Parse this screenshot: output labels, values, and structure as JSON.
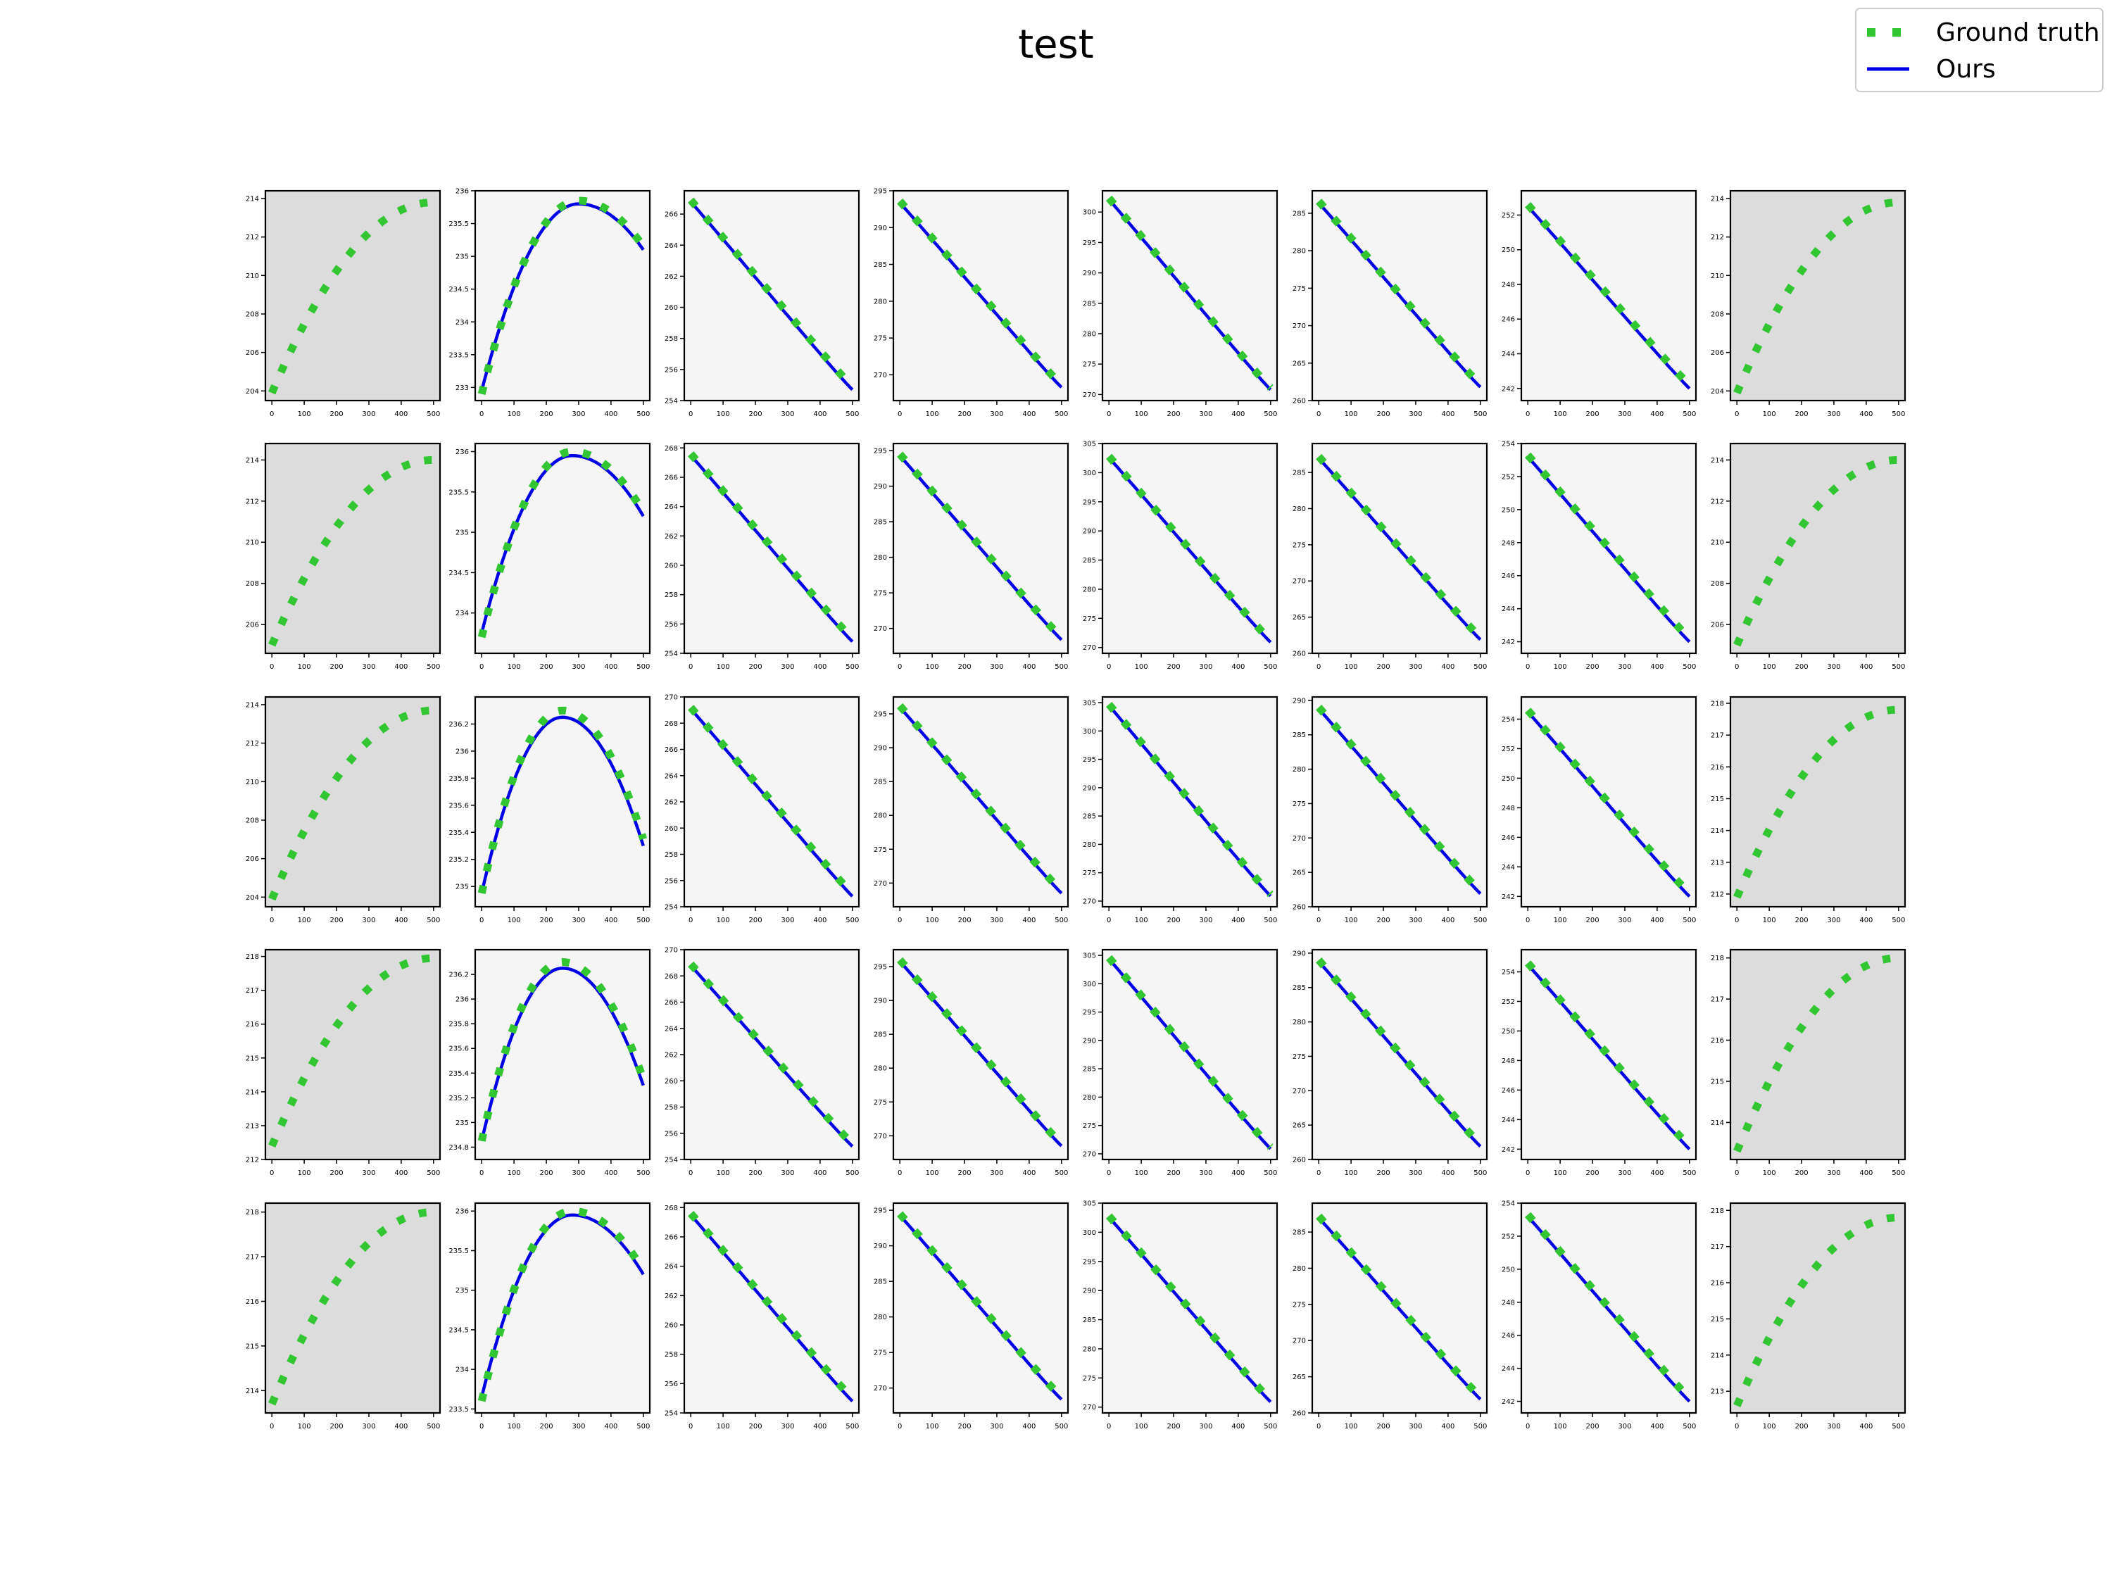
{
  "figure": {
    "title": "test",
    "legend": {
      "placement": "top-right",
      "entries": [
        {
          "label": "Ground truth",
          "color": "#33c633",
          "style": "dotted",
          "marker": "square-dash"
        },
        {
          "label": "Ours",
          "color": "#0000e6",
          "style": "solid"
        }
      ]
    },
    "colors": {
      "ground_truth": "#33c633",
      "ours": "#0000e6",
      "background_observed": "#dcdcdc",
      "background_predicted": "#f5f5f5"
    }
  },
  "chart_data": {
    "type": "line",
    "layout": {
      "rows": 5,
      "cols": 8
    },
    "x_ticks": [
      0,
      100,
      200,
      300,
      400,
      500
    ],
    "x_range": [
      -20,
      520
    ],
    "series_names": [
      "Ground truth",
      "Ours"
    ],
    "panels": [
      {
        "row": 0,
        "col": 0,
        "shaded": true,
        "shape": "rise",
        "gt": [
          203.9,
          213.8
        ],
        "ylim": [
          203.5,
          214.4
        ],
        "yticks": [
          204,
          206,
          208,
          210,
          212,
          214
        ]
      },
      {
        "row": 0,
        "col": 1,
        "shaded": false,
        "shape": "arch",
        "gt": [
          232.9,
          235.85,
          235.15
        ],
        "ours": [
          232.95,
          235.8,
          235.1
        ],
        "peak_x": 300,
        "ylim": [
          232.8,
          236.0
        ],
        "yticks": [
          233.0,
          233.5,
          234.0,
          234.5,
          235.0,
          235.5,
          236.0
        ]
      },
      {
        "row": 0,
        "col": 2,
        "shaded": false,
        "shape": "fall",
        "gt": [
          266.9,
          254.9
        ],
        "ours": [
          266.8,
          254.7
        ],
        "ylim": [
          254.0,
          267.5
        ],
        "yticks": [
          254,
          256,
          258,
          260,
          262,
          264,
          266
        ]
      },
      {
        "row": 0,
        "col": 3,
        "shaded": false,
        "shape": "fall",
        "gt": [
          293.6,
          268.6
        ],
        "ours": [
          293.4,
          268.3
        ],
        "ylim": [
          266.5,
          295.0
        ],
        "yticks": [
          270,
          275,
          280,
          285,
          290,
          295
        ]
      },
      {
        "row": 0,
        "col": 4,
        "shaded": false,
        "shape": "fall",
        "gt": [
          302.3,
          271.1
        ],
        "ours": [
          302.1,
          270.8
        ],
        "ylim": [
          269.0,
          303.5
        ],
        "yticks": [
          270,
          275,
          280,
          285,
          290,
          295,
          300
        ]
      },
      {
        "row": 0,
        "col": 5,
        "shaded": false,
        "shape": "fall",
        "gt": [
          286.6,
          262.1
        ],
        "ours": [
          286.4,
          261.8
        ],
        "ylim": [
          260.0,
          288.0
        ],
        "yticks": [
          260,
          265,
          270,
          275,
          280,
          285
        ]
      },
      {
        "row": 0,
        "col": 6,
        "shaded": false,
        "shape": "fall",
        "gt": [
          252.6,
          242.2
        ],
        "ours": [
          252.5,
          242.0
        ],
        "ylim": [
          241.3,
          253.4
        ],
        "yticks": [
          242,
          244,
          246,
          248,
          250,
          252
        ]
      },
      {
        "row": 0,
        "col": 7,
        "shaded": true,
        "shape": "rise",
        "gt": [
          203.9,
          213.8
        ],
        "ylim": [
          203.5,
          214.4
        ],
        "yticks": [
          204,
          206,
          208,
          210,
          212,
          214
        ]
      },
      {
        "row": 1,
        "col": 0,
        "shaded": true,
        "shape": "rise",
        "gt": [
          205.0,
          214.0
        ],
        "ylim": [
          204.6,
          214.8
        ],
        "yticks": [
          206,
          208,
          210,
          212,
          214
        ]
      },
      {
        "row": 1,
        "col": 1,
        "shaded": false,
        "shape": "arch",
        "gt": [
          233.7,
          236.0,
          235.25
        ],
        "ours": [
          233.75,
          235.95,
          235.2
        ],
        "peak_x": 280,
        "ylim": [
          233.5,
          236.1
        ],
        "yticks": [
          234.0,
          234.5,
          235.0,
          235.5,
          236.0
        ]
      },
      {
        "row": 1,
        "col": 2,
        "shaded": false,
        "shape": "fall",
        "gt": [
          267.6,
          255.0
        ],
        "ours": [
          267.5,
          254.8
        ],
        "ylim": [
          254.0,
          268.3
        ],
        "yticks": [
          254,
          256,
          258,
          260,
          262,
          264,
          266,
          268
        ]
      },
      {
        "row": 1,
        "col": 3,
        "shaded": false,
        "shape": "fall",
        "gt": [
          294.5,
          268.7
        ],
        "ours": [
          294.3,
          268.4
        ],
        "ylim": [
          266.5,
          296.0
        ],
        "yticks": [
          270,
          275,
          280,
          285,
          290,
          295
        ]
      },
      {
        "row": 1,
        "col": 4,
        "shaded": false,
        "shape": "fall",
        "gt": [
          302.8,
          271.2
        ],
        "ours": [
          302.6,
          270.9
        ],
        "ylim": [
          269.0,
          305.0
        ],
        "yticks": [
          270,
          275,
          280,
          285,
          290,
          295,
          300,
          305
        ]
      },
      {
        "row": 1,
        "col": 5,
        "shaded": false,
        "shape": "fall",
        "gt": [
          287.2,
          262.2
        ],
        "ours": [
          287.0,
          261.9
        ],
        "ylim": [
          260.0,
          289.0
        ],
        "yticks": [
          260,
          265,
          270,
          275,
          280,
          285
        ]
      },
      {
        "row": 1,
        "col": 6,
        "shaded": false,
        "shape": "fall",
        "gt": [
          253.3,
          242.2
        ],
        "ours": [
          253.2,
          242.0
        ],
        "ylim": [
          241.3,
          254.0
        ],
        "yticks": [
          242,
          244,
          246,
          248,
          250,
          252,
          254
        ]
      },
      {
        "row": 1,
        "col": 7,
        "shaded": true,
        "shape": "rise",
        "gt": [
          205.0,
          214.0
        ],
        "ylim": [
          204.6,
          214.8
        ],
        "yticks": [
          206,
          208,
          210,
          212,
          214
        ]
      },
      {
        "row": 2,
        "col": 0,
        "shaded": true,
        "shape": "rise",
        "gt": [
          203.9,
          213.7
        ],
        "ylim": [
          203.5,
          214.4
        ],
        "yticks": [
          204,
          206,
          208,
          210,
          212,
          214
        ]
      },
      {
        "row": 2,
        "col": 1,
        "shaded": false,
        "shape": "arch",
        "gt": [
          234.95,
          236.3,
          235.35
        ],
        "ours": [
          234.95,
          236.25,
          235.3
        ],
        "peak_x": 250,
        "ylim": [
          234.85,
          236.4
        ],
        "yticks": [
          235.0,
          235.2,
          235.4,
          235.6,
          235.8,
          236.0,
          236.2
        ]
      },
      {
        "row": 2,
        "col": 2,
        "shaded": false,
        "shape": "fall",
        "gt": [
          269.2,
          255.0
        ],
        "ours": [
          269.1,
          254.8
        ],
        "ylim": [
          254.0,
          270.0
        ],
        "yticks": [
          254,
          256,
          258,
          260,
          262,
          264,
          266,
          268,
          270
        ]
      },
      {
        "row": 2,
        "col": 3,
        "shaded": false,
        "shape": "fall",
        "gt": [
          296.2,
          268.8
        ],
        "ours": [
          296.0,
          268.5
        ],
        "ylim": [
          266.5,
          297.5
        ],
        "yticks": [
          270,
          275,
          280,
          285,
          290,
          295
        ]
      },
      {
        "row": 2,
        "col": 4,
        "shaded": false,
        "shape": "fall",
        "gt": [
          304.7,
          271.2
        ],
        "ours": [
          304.5,
          270.9
        ],
        "ylim": [
          269.0,
          306.0
        ],
        "yticks": [
          270,
          275,
          280,
          285,
          290,
          295,
          300,
          305
        ]
      },
      {
        "row": 2,
        "col": 5,
        "shaded": false,
        "shape": "fall",
        "gt": [
          289.0,
          262.2
        ],
        "ours": [
          288.8,
          261.9
        ],
        "ylim": [
          260.0,
          290.5
        ],
        "yticks": [
          260,
          265,
          270,
          275,
          280,
          285,
          290
        ]
      },
      {
        "row": 2,
        "col": 6,
        "shaded": false,
        "shape": "fall",
        "gt": [
          254.6,
          242.2
        ],
        "ours": [
          254.5,
          242.0
        ],
        "ylim": [
          241.3,
          255.5
        ],
        "yticks": [
          242,
          244,
          246,
          248,
          250,
          252,
          254
        ]
      },
      {
        "row": 2,
        "col": 7,
        "shaded": true,
        "shape": "rise",
        "gt": [
          211.9,
          217.8
        ],
        "ylim": [
          211.6,
          218.2
        ],
        "yticks": [
          212,
          213,
          214,
          215,
          216,
          217,
          218
        ]
      },
      {
        "row": 3,
        "col": 0,
        "shaded": true,
        "shape": "rise",
        "gt": [
          212.4,
          217.95
        ],
        "ylim": [
          212.0,
          218.2
        ],
        "yticks": [
          212,
          213,
          214,
          215,
          216,
          217,
          218
        ]
      },
      {
        "row": 3,
        "col": 1,
        "shaded": false,
        "shape": "arch",
        "gt": [
          234.85,
          236.3,
          235.35
        ],
        "ours": [
          234.85,
          236.25,
          235.3
        ],
        "peak_x": 250,
        "ylim": [
          234.7,
          236.4
        ],
        "yticks": [
          234.8,
          235.0,
          235.2,
          235.4,
          235.6,
          235.8,
          236.0,
          236.2
        ]
      },
      {
        "row": 3,
        "col": 2,
        "shaded": false,
        "shape": "fall",
        "gt": [
          268.9,
          255.2
        ],
        "ours": [
          268.8,
          255.0
        ],
        "ylim": [
          254.0,
          270.0
        ],
        "yticks": [
          254,
          256,
          258,
          260,
          262,
          264,
          266,
          268,
          270
        ]
      },
      {
        "row": 3,
        "col": 3,
        "shaded": false,
        "shape": "fall",
        "gt": [
          296.0,
          268.8
        ],
        "ours": [
          295.8,
          268.5
        ],
        "ylim": [
          266.5,
          297.5
        ],
        "yticks": [
          270,
          275,
          280,
          285,
          290,
          295
        ]
      },
      {
        "row": 3,
        "col": 4,
        "shaded": false,
        "shape": "fall",
        "gt": [
          304.6,
          271.2
        ],
        "ours": [
          304.4,
          270.9
        ],
        "ylim": [
          269.0,
          306.0
        ],
        "yticks": [
          270,
          275,
          280,
          285,
          290,
          295,
          300,
          305
        ]
      },
      {
        "row": 3,
        "col": 5,
        "shaded": false,
        "shape": "fall",
        "gt": [
          289.0,
          262.2
        ],
        "ours": [
          288.8,
          261.9
        ],
        "ylim": [
          260.0,
          290.5
        ],
        "yticks": [
          260,
          265,
          270,
          275,
          280,
          285,
          290
        ]
      },
      {
        "row": 3,
        "col": 6,
        "shaded": false,
        "shape": "fall",
        "gt": [
          254.6,
          242.2
        ],
        "ours": [
          254.5,
          242.0
        ],
        "ylim": [
          241.3,
          255.5
        ],
        "yticks": [
          242,
          244,
          246,
          248,
          250,
          252,
          254
        ]
      },
      {
        "row": 3,
        "col": 7,
        "shaded": true,
        "shape": "rise",
        "gt": [
          213.3,
          218.0
        ],
        "ylim": [
          213.1,
          218.2
        ],
        "yticks": [
          214,
          215,
          216,
          217,
          218
        ]
      },
      {
        "row": 4,
        "col": 0,
        "shaded": true,
        "shape": "rise",
        "gt": [
          213.7,
          218.0
        ],
        "ylim": [
          213.5,
          218.2
        ],
        "yticks": [
          214,
          215,
          216,
          217,
          218
        ]
      },
      {
        "row": 4,
        "col": 1,
        "shaded": false,
        "shape": "arch",
        "gt": [
          233.6,
          236.0,
          235.25
        ],
        "ours": [
          233.65,
          235.95,
          235.2
        ],
        "peak_x": 280,
        "ylim": [
          233.45,
          236.1
        ],
        "yticks": [
          233.5,
          234.0,
          234.5,
          235.0,
          235.5,
          236.0
        ]
      },
      {
        "row": 4,
        "col": 2,
        "shaded": false,
        "shape": "fall",
        "gt": [
          267.6,
          255.0
        ],
        "ours": [
          267.5,
          254.8
        ],
        "ylim": [
          254.0,
          268.3
        ],
        "yticks": [
          254,
          256,
          258,
          260,
          262,
          264,
          266,
          268
        ]
      },
      {
        "row": 4,
        "col": 3,
        "shaded": false,
        "shape": "fall",
        "gt": [
          294.5,
          268.7
        ],
        "ours": [
          294.3,
          268.4
        ],
        "ylim": [
          266.5,
          296.0
        ],
        "yticks": [
          270,
          275,
          280,
          285,
          290,
          295
        ]
      },
      {
        "row": 4,
        "col": 4,
        "shaded": false,
        "shape": "fall",
        "gt": [
          302.8,
          271.2
        ],
        "ours": [
          302.6,
          270.9
        ],
        "ylim": [
          269.0,
          305.0
        ],
        "yticks": [
          270,
          275,
          280,
          285,
          290,
          295,
          300,
          305
        ]
      },
      {
        "row": 4,
        "col": 5,
        "shaded": false,
        "shape": "fall",
        "gt": [
          287.2,
          262.2
        ],
        "ours": [
          287.0,
          261.9
        ],
        "ylim": [
          260.0,
          289.0
        ],
        "yticks": [
          260,
          265,
          270,
          275,
          280,
          285
        ]
      },
      {
        "row": 4,
        "col": 6,
        "shaded": false,
        "shape": "fall",
        "gt": [
          253.3,
          242.2
        ],
        "ours": [
          253.2,
          242.0
        ],
        "ylim": [
          241.3,
          254.0
        ],
        "yticks": [
          242,
          244,
          246,
          248,
          250,
          252,
          254
        ]
      },
      {
        "row": 4,
        "col": 7,
        "shaded": true,
        "shape": "rise",
        "gt": [
          212.6,
          217.8
        ],
        "ylim": [
          212.4,
          218.2
        ],
        "yticks": [
          213,
          214,
          215,
          216,
          217,
          218
        ]
      }
    ]
  }
}
